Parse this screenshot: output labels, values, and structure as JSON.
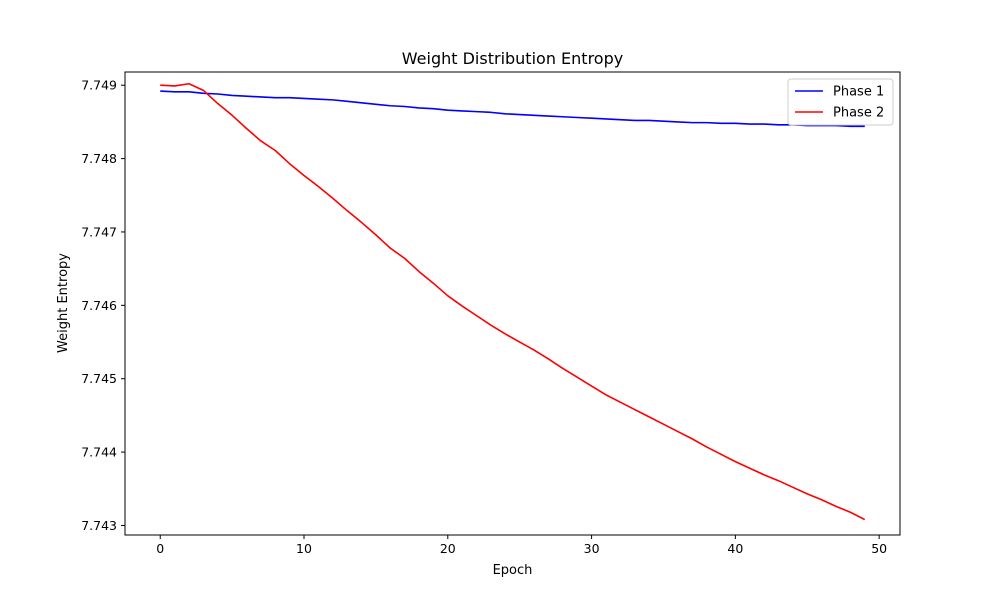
{
  "chart_data": {
    "type": "line",
    "title": "Weight Distribution Entropy",
    "xlabel": "Epoch",
    "ylabel": "Weight Entropy",
    "xlim": [
      -2.45,
      51.45
    ],
    "ylim": [
      7.74287,
      7.74918
    ],
    "xticks": [
      0,
      10,
      20,
      30,
      40,
      50
    ],
    "yticks": [
      7.743,
      7.744,
      7.745,
      7.746,
      7.747,
      7.748,
      7.749
    ],
    "ytick_labels": [
      "7.743",
      "7.744",
      "7.745",
      "7.746",
      "7.747",
      "7.748",
      "7.749"
    ],
    "grid": false,
    "legend_position": "top-right",
    "series": [
      {
        "name": "Phase 1",
        "color": "#0000ff",
        "x": [
          0,
          1,
          2,
          3,
          4,
          5,
          6,
          7,
          8,
          9,
          10,
          11,
          12,
          13,
          14,
          15,
          16,
          17,
          18,
          19,
          20,
          21,
          22,
          23,
          24,
          25,
          26,
          27,
          28,
          29,
          30,
          31,
          32,
          33,
          34,
          35,
          36,
          37,
          38,
          39,
          40,
          41,
          42,
          43,
          44,
          45,
          46,
          47,
          48,
          49
        ],
        "values": [
          7.74892,
          7.74891,
          7.74891,
          7.74889,
          7.74888,
          7.74886,
          7.74885,
          7.74884,
          7.74883,
          7.74883,
          7.74882,
          7.74881,
          7.7488,
          7.74878,
          7.74876,
          7.74874,
          7.74872,
          7.74871,
          7.74869,
          7.74868,
          7.74866,
          7.74865,
          7.74864,
          7.74863,
          7.74861,
          7.7486,
          7.74859,
          7.74858,
          7.74857,
          7.74856,
          7.74855,
          7.74854,
          7.74853,
          7.74852,
          7.74852,
          7.74851,
          7.7485,
          7.74849,
          7.74849,
          7.74848,
          7.74848,
          7.74847,
          7.74847,
          7.74846,
          7.74846,
          7.74845,
          7.74845,
          7.74845,
          7.74844,
          7.74844
        ]
      },
      {
        "name": "Phase 2",
        "color": "#ff0000",
        "x": [
          0,
          1,
          2,
          3,
          4,
          5,
          6,
          7,
          8,
          9,
          10,
          11,
          12,
          13,
          14,
          15,
          16,
          17,
          18,
          19,
          20,
          21,
          22,
          23,
          24,
          25,
          26,
          27,
          28,
          29,
          30,
          31,
          32,
          33,
          34,
          35,
          36,
          37,
          38,
          39,
          40,
          41,
          42,
          43,
          44,
          45,
          46,
          47,
          48,
          49
        ],
        "values": [
          7.749,
          7.74899,
          7.74902,
          7.74893,
          7.74875,
          7.74859,
          7.74841,
          7.74824,
          7.74811,
          7.74793,
          7.74777,
          7.74762,
          7.74746,
          7.74729,
          7.74713,
          7.74696,
          7.74678,
          7.74664,
          7.74646,
          7.7463,
          7.74613,
          7.74599,
          7.74586,
          7.74573,
          7.74561,
          7.7455,
          7.74539,
          7.74527,
          7.74514,
          7.74502,
          7.7449,
          7.74478,
          7.74468,
          7.74458,
          7.74448,
          7.74438,
          7.74428,
          7.74418,
          7.74407,
          7.74397,
          7.74387,
          7.74378,
          7.74369,
          7.74361,
          7.74352,
          7.74343,
          7.74335,
          7.74326,
          7.74318,
          7.74308
        ]
      }
    ]
  }
}
